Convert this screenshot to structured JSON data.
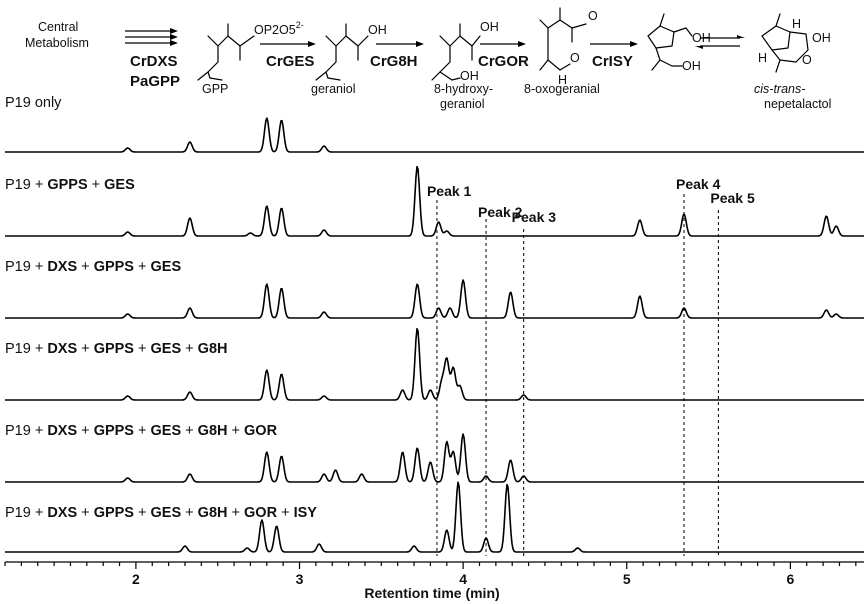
{
  "pathway": {
    "start": [
      "Central",
      "Metabolism"
    ],
    "steps": [
      {
        "enzyme": [
          "CrDXS",
          "PaGPP"
        ],
        "product": [
          "GPP"
        ],
        "product_formula": "OP2O5",
        "product_charge": "2-"
      },
      {
        "enzyme": [
          "CrGES"
        ],
        "product": [
          "geraniol"
        ],
        "product_formula": "OH"
      },
      {
        "enzyme": [
          "CrG8H"
        ],
        "product": [
          "8-hydroxy-",
          "geraniol"
        ],
        "product_formula": "OH"
      },
      {
        "enzyme": [
          "CrGOR"
        ],
        "product": [
          "8-oxogeranial"
        ],
        "product_formula": "O"
      },
      {
        "enzyme": [
          "CrISY"
        ],
        "product": [
          "cis-trans-",
          "nepetalactol"
        ],
        "product_formula": "OH"
      }
    ],
    "final_extra_labels": [
      "H",
      "H",
      "O",
      "OH"
    ]
  },
  "chart_data": {
    "type": "line",
    "xlabel": "Retention time (min)",
    "xlim": [
      1.2,
      6.45
    ],
    "xticks": [
      2,
      3,
      4,
      5,
      6
    ],
    "peak_markers": [
      {
        "label": "Peak 1",
        "x": 3.84
      },
      {
        "label": "Peak 2",
        "x": 4.14
      },
      {
        "label": "Peak 3",
        "x": 4.37
      },
      {
        "label": "Peak 4",
        "x": 5.35
      },
      {
        "label": "Peak 5",
        "x": 5.56
      }
    ],
    "series": [
      {
        "name": "P19 only",
        "label_parts": [
          {
            "t": "P19 only",
            "b": false
          }
        ],
        "peaks": [
          [
            1.95,
            4
          ],
          [
            2.33,
            10
          ],
          [
            2.8,
            34
          ],
          [
            2.89,
            32
          ],
          [
            3.15,
            6
          ]
        ]
      },
      {
        "name": "P19 + GPPS + GES",
        "label_parts": [
          {
            "t": "P19 + ",
            "b": false
          },
          {
            "t": "GPPS",
            "b": true
          },
          {
            "t": " + ",
            "b": false
          },
          {
            "t": "GES",
            "b": true
          }
        ],
        "peaks": [
          [
            1.95,
            4
          ],
          [
            2.33,
            18
          ],
          [
            2.7,
            3
          ],
          [
            2.8,
            30
          ],
          [
            2.89,
            28
          ],
          [
            3.15,
            6
          ],
          [
            3.72,
            70
          ],
          [
            3.85,
            14
          ],
          [
            3.9,
            5
          ],
          [
            5.08,
            16
          ],
          [
            5.35,
            22
          ],
          [
            6.22,
            20
          ],
          [
            6.28,
            10
          ]
        ]
      },
      {
        "name": "P19 + DXS + GPPS + GES",
        "label_parts": [
          {
            "t": "P19 + ",
            "b": false
          },
          {
            "t": "DXS",
            "b": true
          },
          {
            "t": " + ",
            "b": false
          },
          {
            "t": "GPPS",
            "b": true
          },
          {
            "t": " + ",
            "b": false
          },
          {
            "t": "GES",
            "b": true
          }
        ],
        "peaks": [
          [
            1.95,
            4
          ],
          [
            2.33,
            10
          ],
          [
            2.8,
            34
          ],
          [
            2.89,
            30
          ],
          [
            3.15,
            6
          ],
          [
            3.72,
            34
          ],
          [
            3.85,
            10
          ],
          [
            3.92,
            10
          ],
          [
            4.0,
            38
          ],
          [
            4.29,
            26
          ],
          [
            5.08,
            22
          ],
          [
            5.35,
            10
          ],
          [
            6.22,
            8
          ],
          [
            6.28,
            4
          ]
        ]
      },
      {
        "name": "P19 + DXS + GPPS + GES + G8H",
        "label_parts": [
          {
            "t": "P19 + ",
            "b": false
          },
          {
            "t": "DXS",
            "b": true
          },
          {
            "t": " + ",
            "b": false
          },
          {
            "t": "GPPS",
            "b": true
          },
          {
            "t": " + ",
            "b": false
          },
          {
            "t": "GES",
            "b": true
          },
          {
            "t": " + ",
            "b": false
          },
          {
            "t": "G8H",
            "b": true
          }
        ],
        "peaks": [
          [
            1.95,
            4
          ],
          [
            2.33,
            8
          ],
          [
            2.8,
            30
          ],
          [
            2.89,
            26
          ],
          [
            3.15,
            4
          ],
          [
            3.63,
            10
          ],
          [
            3.72,
            72
          ],
          [
            3.8,
            10
          ],
          [
            3.87,
            18
          ],
          [
            3.9,
            40
          ],
          [
            3.94,
            32
          ],
          [
            3.98,
            14
          ],
          [
            4.37,
            5
          ]
        ]
      },
      {
        "name": "P19 + DXS + GPPS + GES + G8H + GOR",
        "label_parts": [
          {
            "t": "P19 + ",
            "b": false
          },
          {
            "t": "DXS",
            "b": true
          },
          {
            "t": " + ",
            "b": false
          },
          {
            "t": "GPPS",
            "b": true
          },
          {
            "t": " + ",
            "b": false
          },
          {
            "t": "GES",
            "b": true
          },
          {
            "t": " + ",
            "b": false
          },
          {
            "t": "G8H",
            "b": true
          },
          {
            "t": " + ",
            "b": false
          },
          {
            "t": "GOR",
            "b": true
          }
        ],
        "peaks": [
          [
            1.95,
            4
          ],
          [
            2.33,
            8
          ],
          [
            2.8,
            30
          ],
          [
            2.89,
            26
          ],
          [
            3.15,
            8
          ],
          [
            3.22,
            12
          ],
          [
            3.38,
            8
          ],
          [
            3.63,
            30
          ],
          [
            3.72,
            34
          ],
          [
            3.8,
            20
          ],
          [
            3.9,
            40
          ],
          [
            3.94,
            30
          ],
          [
            4.0,
            48
          ],
          [
            4.14,
            6
          ],
          [
            4.29,
            22
          ],
          [
            4.37,
            6
          ]
        ]
      },
      {
        "name": "P19 + DXS + GPPS + GES + G8H + GOR + ISY",
        "label_parts": [
          {
            "t": "P19 + ",
            "b": false
          },
          {
            "t": "DXS",
            "b": true
          },
          {
            "t": " + ",
            "b": false
          },
          {
            "t": "GPPS",
            "b": true
          },
          {
            "t": " + ",
            "b": false
          },
          {
            "t": "GES",
            "b": true
          },
          {
            "t": " + ",
            "b": false
          },
          {
            "t": "G8H",
            "b": true
          },
          {
            "t": " + ",
            "b": false
          },
          {
            "t": "GOR",
            "b": true
          },
          {
            "t": " + ",
            "b": false
          },
          {
            "t": "ISY",
            "b": true
          }
        ],
        "peaks": [
          [
            2.3,
            6
          ],
          [
            2.68,
            4
          ],
          [
            2.77,
            32
          ],
          [
            2.86,
            26
          ],
          [
            3.12,
            8
          ],
          [
            3.7,
            6
          ],
          [
            3.9,
            22
          ],
          [
            3.97,
            70
          ],
          [
            4.14,
            14
          ],
          [
            4.27,
            68
          ],
          [
            4.7,
            4
          ]
        ]
      }
    ]
  }
}
